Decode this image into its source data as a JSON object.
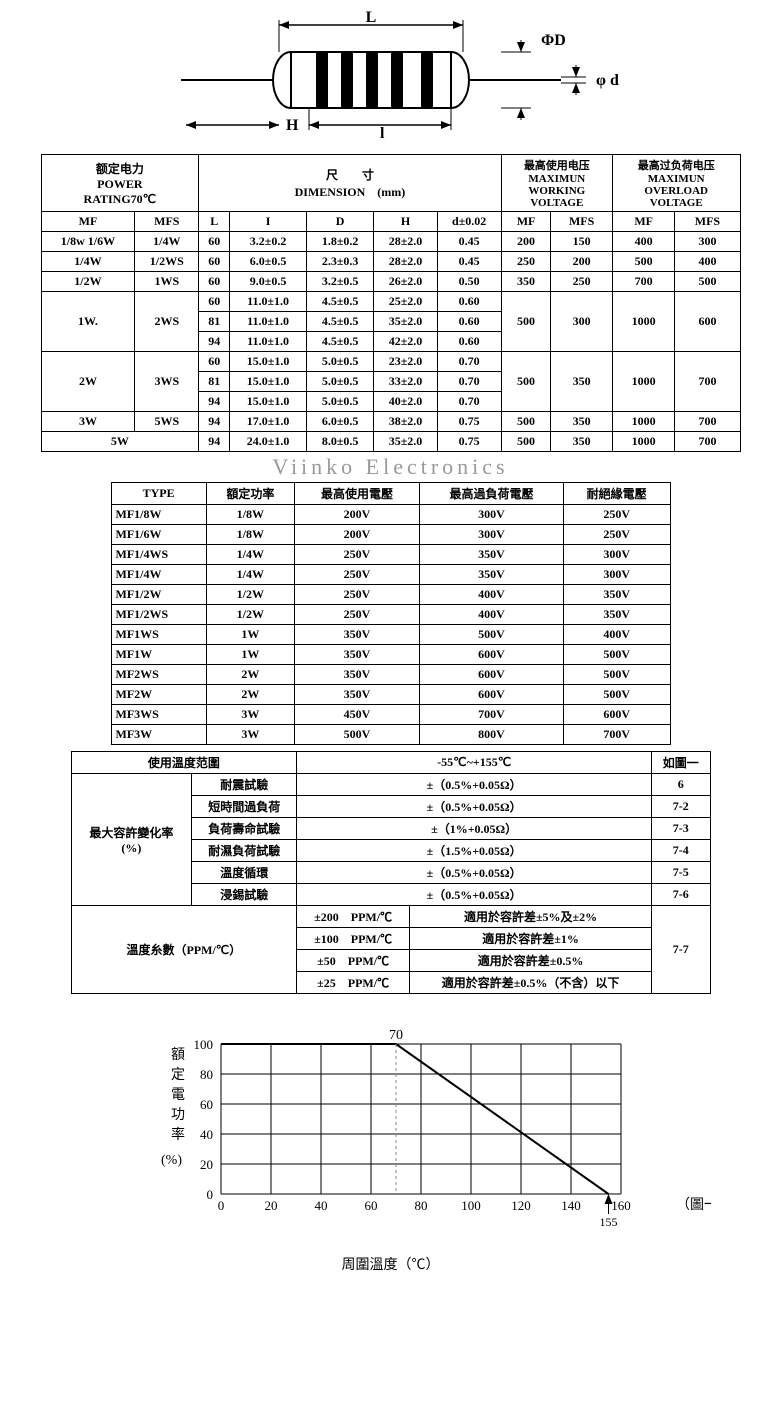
{
  "diagram": {
    "labels": {
      "L": "L",
      "PhiD": "ΦD",
      "phid": "φ d",
      "H": "H",
      "l": "l"
    }
  },
  "table1": {
    "headers": {
      "power": "额定电力\nPOWER\nRATING70℃",
      "dim": "尺　　寸\nDIMENSION　(mm)",
      "maxwork": "最高使用电压\nMAXIMUN\nWORKING\nVOLTAGE",
      "maxover": "最高过负荷电压\nMAXIMUN\nOVERLOAD\nVOLTAGE",
      "sub": [
        "MF",
        "MFS",
        "L",
        "I",
        "D",
        "H",
        "d±0.02",
        "MF",
        "MFS",
        "MF",
        "MFS"
      ]
    },
    "rows": [
      [
        "1/8w 1/6W",
        "1/4W",
        "60",
        "3.2±0.2",
        "1.8±0.2",
        "28±2.0",
        "0.45",
        "200",
        "150",
        "400",
        "300"
      ],
      [
        "1/4W",
        "1/2WS",
        "60",
        "6.0±0.5",
        "2.3±0.3",
        "28±2.0",
        "0.45",
        "250",
        "200",
        "500",
        "400"
      ],
      [
        "1/2W",
        "1WS",
        "60",
        "9.0±0.5",
        "3.2±0.5",
        "26±2.0",
        "0.50",
        "350",
        "250",
        "700",
        "500"
      ]
    ],
    "group1": {
      "mf": "1W.",
      "mfs": "2WS",
      "rows": [
        [
          "60",
          "11.0±1.0",
          "4.5±0.5",
          "25±2.0",
          "0.60"
        ],
        [
          "81",
          "11.0±1.0",
          "4.5±0.5",
          "35±2.0",
          "0.60"
        ],
        [
          "94",
          "11.0±1.0",
          "4.5±0.5",
          "42±2.0",
          "0.60"
        ]
      ],
      "v": [
        "500",
        "300",
        "1000",
        "600"
      ]
    },
    "group2": {
      "mf": "2W",
      "mfs": "3WS",
      "rows": [
        [
          "60",
          "15.0±1.0",
          "5.0±0.5",
          "23±2.0",
          "0.70"
        ],
        [
          "81",
          "15.0±1.0",
          "5.0±0.5",
          "33±2.0",
          "0.70"
        ],
        [
          "94",
          "15.0±1.0",
          "5.0±0.5",
          "40±2.0",
          "0.70"
        ]
      ],
      "v": [
        "500",
        "350",
        "1000",
        "700"
      ]
    },
    "row3w": [
      "3W",
      "5WS",
      "94",
      "17.0±1.0",
      "6.0±0.5",
      "38±2.0",
      "0.75",
      "500",
      "350",
      "1000",
      "700"
    ],
    "row5w": [
      "5W",
      "94",
      "24.0±1.0",
      "8.0±0.5",
      "35±2.0",
      "0.75",
      "500",
      "350",
      "1000",
      "700"
    ]
  },
  "watermark": "Viinko Electronics",
  "table2": {
    "headers": [
      "TYPE",
      "額定功率",
      "最高使用電壓",
      "最高過負荷電壓",
      "耐絕緣電壓"
    ],
    "rows": [
      [
        "MF1/8W",
        "1/8W",
        "200V",
        "300V",
        "250V"
      ],
      [
        "MF1/6W",
        "1/8W",
        "200V",
        "300V",
        "250V"
      ],
      [
        "MF1/4WS",
        "1/4W",
        "250V",
        "350V",
        "300V"
      ],
      [
        "MF1/4W",
        "1/4W",
        "250V",
        "350V",
        "300V"
      ],
      [
        "MF1/2W",
        "1/2W",
        "250V",
        "400V",
        "350V"
      ],
      [
        "MF1/2WS",
        "1/2W",
        "250V",
        "400V",
        "350V"
      ],
      [
        "MF1WS",
        "1W",
        "350V",
        "500V",
        "400V"
      ],
      [
        "MF1W",
        "1W",
        "350V",
        "600V",
        "500V"
      ],
      [
        "MF2WS",
        "2W",
        "350V",
        "600V",
        "500V"
      ],
      [
        "MF2W",
        "2W",
        "350V",
        "600V",
        "500V"
      ],
      [
        "MF3WS",
        "3W",
        "450V",
        "700V",
        "600V"
      ],
      [
        "MF3W",
        "3W",
        "500V",
        "800V",
        "700V"
      ]
    ]
  },
  "table3": {
    "row1": {
      "a": "使用溫度范圍",
      "b": "-55℃~+155℃",
      "c": "如圖一"
    },
    "tolerance_header": "最大容許變化率\n(%)",
    "tolerance_rows": [
      [
        "耐震試驗",
        "±（0.5%+0.05Ω）",
        "6"
      ],
      [
        "短時間過負荷",
        "±（0.5%+0.05Ω）",
        "7-2"
      ],
      [
        "負荷壽命試驗",
        "±（1%+0.05Ω）",
        "7-3"
      ],
      [
        "耐濕負荷試驗",
        "±（1.5%+0.05Ω）",
        "7-4"
      ],
      [
        "溫度循環",
        "±（0.5%+0.05Ω）",
        "7-5"
      ],
      [
        "浸錫試驗",
        "±（0.5%+0.05Ω）",
        "7-6"
      ]
    ],
    "ppm_header": "溫度糸數（PPM/℃）",
    "ppm_rows": [
      [
        "±200　PPM/℃",
        "適用於容許差±5%及±2%"
      ],
      [
        "±100　PPM/℃",
        "適用於容許差±1%"
      ],
      [
        "±50　PPM/℃",
        "適用於容許差±0.5%"
      ],
      [
        "±25　PPM/℃",
        "適用於容許差±0.5%（不含）以下"
      ]
    ],
    "ppm_ref": "7-7"
  },
  "chart": {
    "ylabel": "額定電功率\n(%)",
    "xlabel": "周圍溫度（℃）",
    "marker_top": "70",
    "marker_x": "155",
    "legend": "（圖一）",
    "yticks": [
      "100",
      "80",
      "60",
      "40",
      "20",
      "0"
    ],
    "xticks": [
      "0",
      "20",
      "40",
      "60",
      "80",
      "100",
      "120",
      "140",
      "160"
    ],
    "grid_color": "#000000",
    "line_color": "#000000",
    "line_path": "M0,0 L70,0 L155,100",
    "xlim": [
      0,
      160
    ],
    "ylim": [
      0,
      100
    ]
  }
}
